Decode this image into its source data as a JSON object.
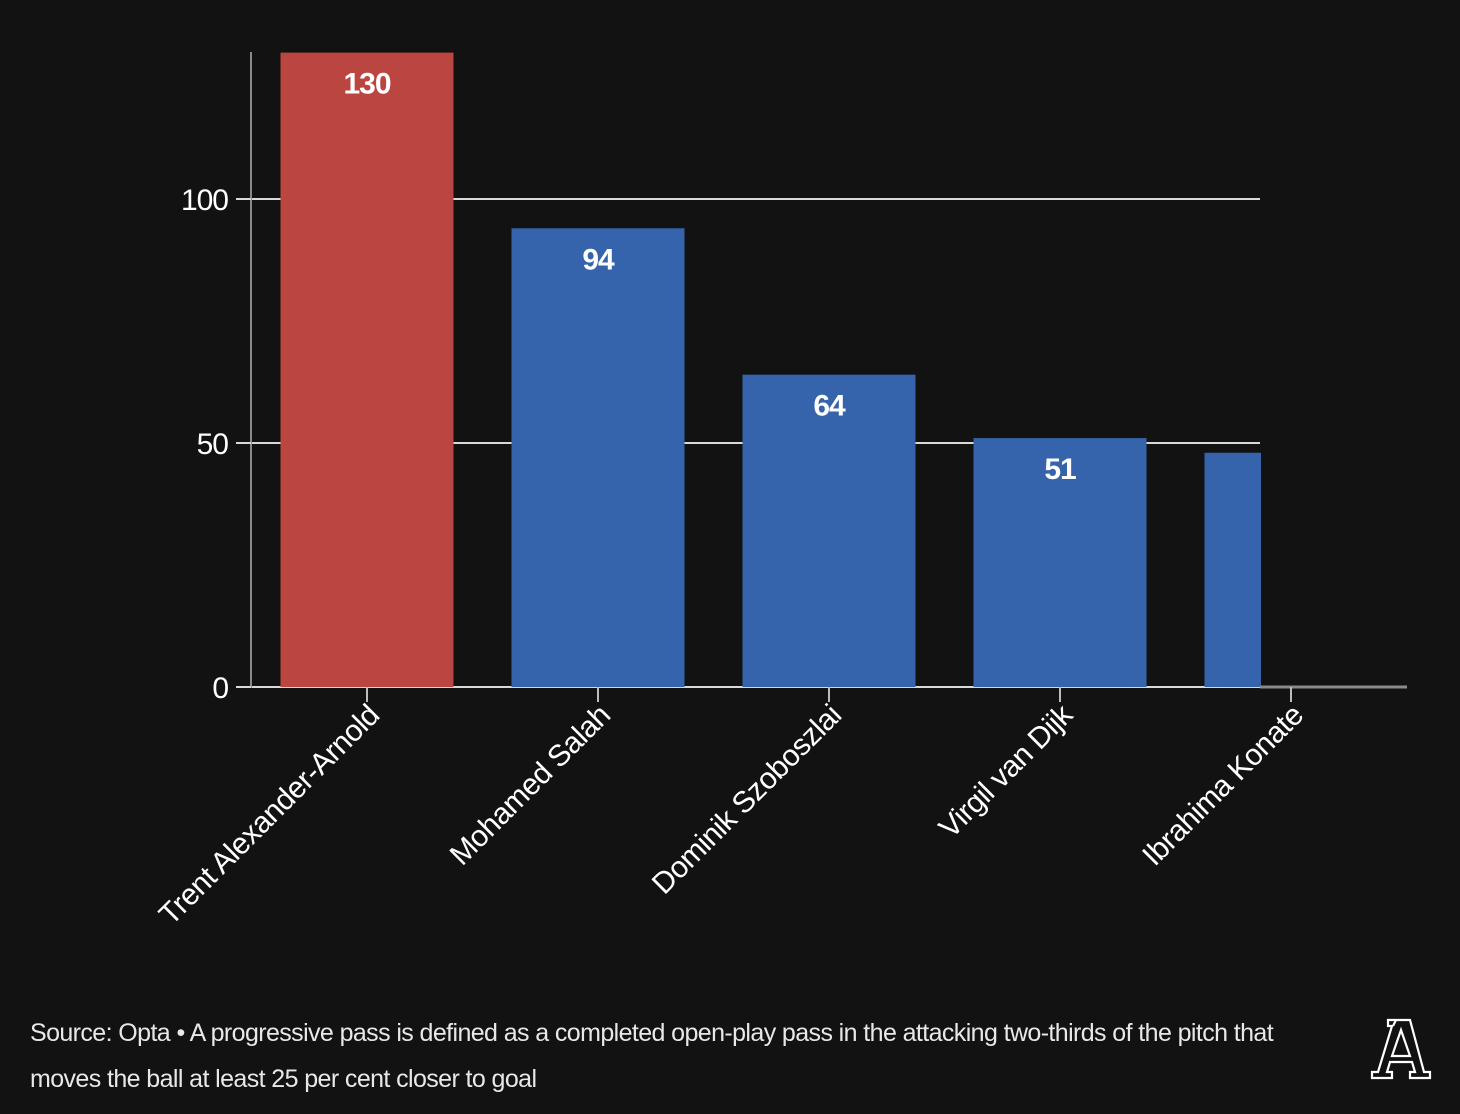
{
  "chart_data": {
    "type": "bar",
    "title": "",
    "xlabel": "",
    "ylabel": "",
    "ylim": [
      0,
      130
    ],
    "yticks": [
      0,
      50,
      100
    ],
    "grid": true,
    "categories": [
      "Trent Alexander-Arnold",
      "Mohamed Salah",
      "Dominik Szoboszlai",
      "Virgil van Dijk",
      "Ibrahima Konate"
    ],
    "values": [
      130,
      94,
      64,
      51,
      48
    ],
    "value_labels": [
      "130",
      "94",
      "64",
      "51",
      ""
    ],
    "colors": [
      "#bb4641",
      "#3564ad",
      "#3564ad",
      "#3564ad",
      "#3564ad"
    ],
    "highlight_color": "#bb4641",
    "base_color": "#3564ad"
  },
  "footer": {
    "text": "Source: Opta • A progressive pass is defined as a completed open-play pass in the attacking two-thirds of the pitch that moves the ball at least 25 per cent closer to goal"
  },
  "logo": {
    "icon": "the-athletic-logo-icon"
  }
}
